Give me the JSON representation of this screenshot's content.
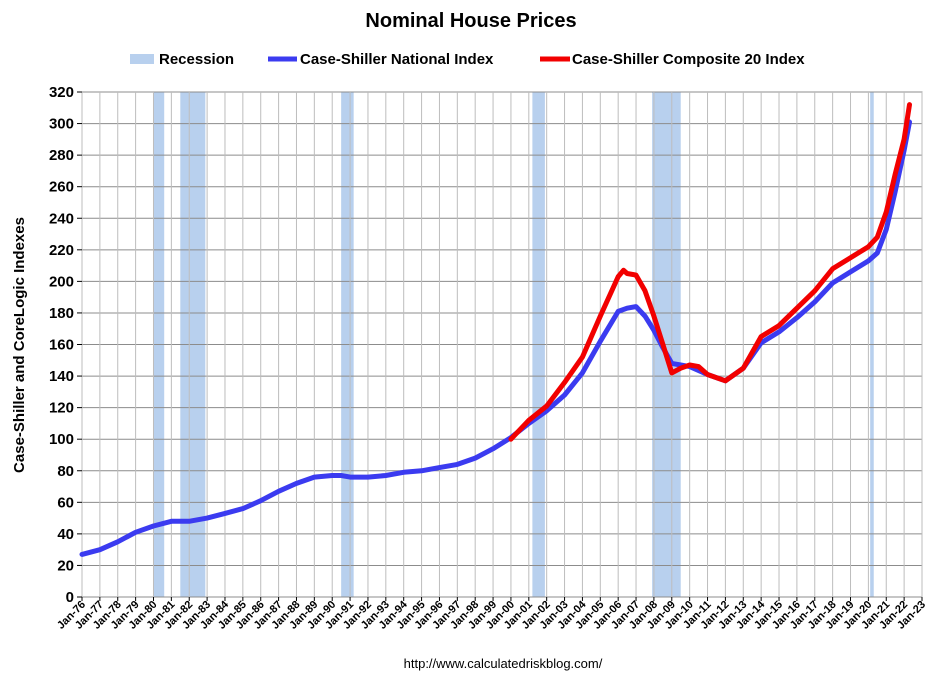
{
  "chart_data": {
    "type": "line",
    "title": "Nominal House Prices",
    "ylabel": "Case-Shiller and CoreLogic Indexes",
    "xlabel": "",
    "source": "http://www.calculatedriskblog.com/",
    "ylim": [
      0,
      320
    ],
    "yticks": [
      0,
      20,
      40,
      60,
      80,
      100,
      120,
      140,
      160,
      180,
      200,
      220,
      240,
      260,
      280,
      300,
      320
    ],
    "xlim": [
      1976,
      2023
    ],
    "xticks": [
      "Jan-76",
      "Jan-77",
      "Jan-78",
      "Jan-79",
      "Jan-80",
      "Jan-81",
      "Jan-82",
      "Jan-83",
      "Jan-84",
      "Jan-85",
      "Jan-86",
      "Jan-87",
      "Jan-88",
      "Jan-89",
      "Jan-90",
      "Jan-91",
      "Jan-92",
      "Jan-93",
      "Jan-94",
      "Jan-95",
      "Jan-96",
      "Jan-97",
      "Jan-98",
      "Jan-99",
      "Jan-00",
      "Jan-01",
      "Jan-02",
      "Jan-03",
      "Jan-04",
      "Jan-05",
      "Jan-06",
      "Jan-07",
      "Jan-08",
      "Jan-09",
      "Jan-10",
      "Jan-11",
      "Jan-12",
      "Jan-13",
      "Jan-14",
      "Jan-15",
      "Jan-16",
      "Jan-17",
      "Jan-18",
      "Jan-19",
      "Jan-20",
      "Jan-21",
      "Jan-22",
      "Jan-23"
    ],
    "grid": true,
    "legend_position": "top",
    "legend": [
      {
        "name": "Recession",
        "kind": "band",
        "color": "#b8d0ee"
      },
      {
        "name": "Case-Shiller National Index",
        "kind": "line",
        "color": "#3b3bf0"
      },
      {
        "name": "Case-Shiller Composite 20 Index",
        "kind": "line",
        "color": "#f20000"
      }
    ],
    "recessions": [
      {
        "start": 1980.0,
        "end": 1980.6
      },
      {
        "start": 1981.5,
        "end": 1982.9
      },
      {
        "start": 1990.5,
        "end": 1991.2
      },
      {
        "start": 2001.2,
        "end": 2001.9
      },
      {
        "start": 2007.9,
        "end": 2009.5
      },
      {
        "start": 2020.1,
        "end": 2020.3
      }
    ],
    "series": [
      {
        "name": "Case-Shiller National Index",
        "color": "#3b3bf0",
        "x": [
          1976,
          1977,
          1978,
          1979,
          1980,
          1981,
          1982,
          1983,
          1984,
          1985,
          1986,
          1987,
          1988,
          1989,
          1990,
          1990.5,
          1991,
          1992,
          1993,
          1994,
          1995,
          1996,
          1997,
          1998,
          1999,
          2000,
          2001,
          2002,
          2003,
          2004,
          2005,
          2006,
          2006.5,
          2007,
          2007.5,
          2008,
          2008.5,
          2009,
          2009.5,
          2010,
          2011,
          2012,
          2013,
          2014,
          2015,
          2016,
          2017,
          2018,
          2019,
          2020,
          2020.5,
          2021,
          2021.5,
          2022,
          2022.3
        ],
        "values": [
          27,
          30,
          35,
          41,
          45,
          48,
          48,
          50,
          53,
          56,
          61,
          67,
          72,
          76,
          77,
          77,
          76,
          76,
          77,
          79,
          80,
          82,
          84,
          88,
          94,
          101,
          110,
          118,
          128,
          142,
          162,
          181,
          183,
          184,
          178,
          169,
          158,
          148,
          147,
          146,
          141,
          137,
          145,
          161,
          168,
          177,
          187,
          199,
          206,
          213,
          218,
          233,
          257,
          283,
          301
        ]
      },
      {
        "name": "Case-Shiller Composite 20 Index",
        "color": "#f20000",
        "x": [
          2000,
          2001,
          2002,
          2003,
          2004,
          2005,
          2006,
          2006.3,
          2006.5,
          2007,
          2007.5,
          2008,
          2008.5,
          2009,
          2009.5,
          2010,
          2010.5,
          2011,
          2012,
          2013,
          2014,
          2015,
          2016,
          2017,
          2018,
          2019,
          2020,
          2020.5,
          2021,
          2021.5,
          2022,
          2022.3
        ],
        "values": [
          100,
          112,
          121,
          136,
          152,
          178,
          203,
          207,
          205,
          204,
          194,
          178,
          160,
          142,
          145,
          147,
          146,
          141,
          137,
          145,
          165,
          172,
          183,
          194,
          208,
          215,
          222,
          228,
          244,
          268,
          290,
          312
        ]
      }
    ]
  }
}
